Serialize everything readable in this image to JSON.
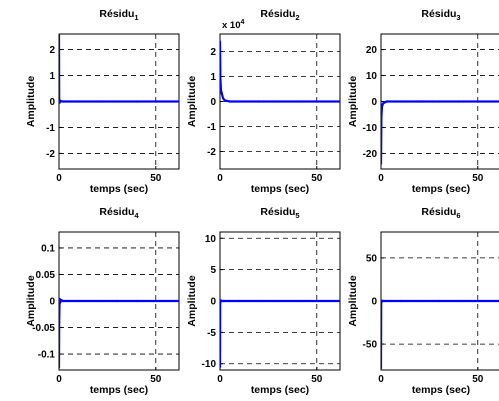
{
  "chart_data": [
    {
      "type": "line",
      "title": "Résidu",
      "title_sub": "1",
      "xlabel": "temps (sec)",
      "ylabel": "Amplitude",
      "xlim": [
        0,
        62
      ],
      "ylim": [
        -2.6,
        2.6
      ],
      "x_ticks": [
        0,
        50
      ],
      "x_tick_labels": [
        "0",
        "50"
      ],
      "y_ticks": [
        -2,
        -1,
        0,
        1,
        2
      ],
      "y_tick_labels": [
        "-2",
        "-1",
        "0",
        "1",
        "2"
      ],
      "exponent_label": "",
      "series": [
        {
          "color": "#0000ff",
          "x": [
            0,
            0.1,
            0.3,
            0.6,
            1,
            2,
            5,
            10,
            20,
            30,
            40,
            50,
            62
          ],
          "y": [
            2.55,
            0.05,
            -0.05,
            0.03,
            0.01,
            0,
            0,
            0,
            0,
            0,
            0,
            0,
            0
          ]
        }
      ],
      "grid": "dashed"
    },
    {
      "type": "line",
      "title": "Résidu",
      "title_sub": "2",
      "xlabel": "temps (sec)",
      "ylabel": "Amplitude",
      "xlim": [
        0,
        62
      ],
      "ylim": [
        -2.7,
        2.7
      ],
      "x_ticks": [
        0,
        50
      ],
      "x_tick_labels": [
        "0",
        "50"
      ],
      "y_ticks": [
        -2,
        -1,
        0,
        1,
        2
      ],
      "y_tick_labels": [
        "-2",
        "-1",
        "0",
        "1",
        "2"
      ],
      "exponent_label": "x 10",
      "exponent_power": "4",
      "series": [
        {
          "color": "#0000ff",
          "x": [
            0,
            0.2,
            0.5,
            1,
            1.5,
            2,
            3,
            5,
            10,
            20,
            30,
            40,
            50,
            62
          ],
          "y": [
            2.4,
            0.9,
            0.45,
            0.3,
            0.15,
            0.08,
            0.03,
            0,
            0,
            0,
            0,
            0,
            0,
            0
          ]
        }
      ],
      "grid": "dashed"
    },
    {
      "type": "line",
      "title": "Résidu",
      "title_sub": "3",
      "xlabel": "temps (sec)",
      "ylabel": "Amplitude",
      "xlim": [
        0,
        62
      ],
      "ylim": [
        -26,
        26
      ],
      "x_ticks": [
        0,
        50
      ],
      "x_tick_labels": [
        "0",
        "50"
      ],
      "y_ticks": [
        -20,
        -10,
        0,
        10,
        20
      ],
      "y_tick_labels": [
        "-20",
        "-10",
        "0",
        "10",
        "20"
      ],
      "exponent_label": "",
      "series": [
        {
          "color": "#0000ff",
          "x": [
            0,
            0.2,
            0.5,
            1,
            2,
            3,
            5,
            10,
            20,
            30,
            40,
            50,
            62
          ],
          "y": [
            -24,
            -6,
            -2,
            -0.8,
            -0.3,
            0,
            0,
            0,
            0,
            0,
            0,
            0,
            0
          ]
        }
      ],
      "grid": "dashed"
    },
    {
      "type": "line",
      "title": "Résidu",
      "title_sub": "4",
      "xlabel": "temps (sec)",
      "ylabel": "Amplitude",
      "xlim": [
        0,
        62
      ],
      "ylim": [
        -0.13,
        0.13
      ],
      "x_ticks": [
        0,
        50
      ],
      "x_tick_labels": [
        "0",
        "50"
      ],
      "y_ticks": [
        -0.1,
        -0.05,
        0,
        0.05,
        0.1
      ],
      "y_tick_labels": [
        "-0.1",
        "-0.05",
        "0",
        "0.05",
        "0.1"
      ],
      "exponent_label": "",
      "series": [
        {
          "color": "#0000ff",
          "x": [
            0,
            0.1,
            0.3,
            0.6,
            1,
            2,
            5,
            10,
            20,
            30,
            40,
            50,
            62
          ],
          "y": [
            -0.125,
            -0.04,
            0.004,
            -0.003,
            0.002,
            0,
            0,
            0,
            0,
            0,
            0,
            0,
            0
          ]
        }
      ],
      "grid": "dashed"
    },
    {
      "type": "line",
      "title": "Résidu",
      "title_sub": "5",
      "xlabel": "temps (sec)",
      "ylabel": "Amplitude",
      "xlim": [
        0,
        62
      ],
      "ylim": [
        -11,
        11
      ],
      "x_ticks": [
        0,
        50
      ],
      "x_tick_labels": [
        "0",
        "50"
      ],
      "y_ticks": [
        -10,
        -5,
        0,
        5,
        10
      ],
      "y_tick_labels": [
        "-10",
        "-5",
        "0",
        "5",
        "10"
      ],
      "exponent_label": "",
      "series": [
        {
          "color": "#0000ff",
          "x": [
            0,
            0.1,
            0.3,
            1,
            2,
            5,
            10,
            20,
            30,
            40,
            50,
            62
          ],
          "y": [
            -10.5,
            -0.3,
            0.1,
            0,
            0,
            0,
            0,
            0,
            0,
            0,
            0,
            0
          ]
        }
      ],
      "grid": "dashed"
    },
    {
      "type": "line",
      "title": "Résidu",
      "title_sub": "6",
      "xlabel": "temps (sec)",
      "ylabel": "Amplitude",
      "xlim": [
        0,
        62
      ],
      "ylim": [
        -80,
        80
      ],
      "x_ticks": [
        0,
        50
      ],
      "x_tick_labels": [
        "0",
        "50"
      ],
      "y_ticks": [
        -50,
        0,
        50
      ],
      "y_tick_labels": [
        "-50",
        "0",
        "50"
      ],
      "exponent_label": "",
      "series": [
        {
          "color": "#0000ff",
          "x": [
            0,
            0.1,
            0.3,
            1,
            2,
            5,
            10,
            20,
            30,
            40,
            50,
            62
          ],
          "y": [
            -78,
            -3,
            0.5,
            0,
            0,
            0,
            0,
            0,
            0,
            0,
            0,
            0
          ]
        }
      ],
      "grid": "dashed"
    }
  ]
}
